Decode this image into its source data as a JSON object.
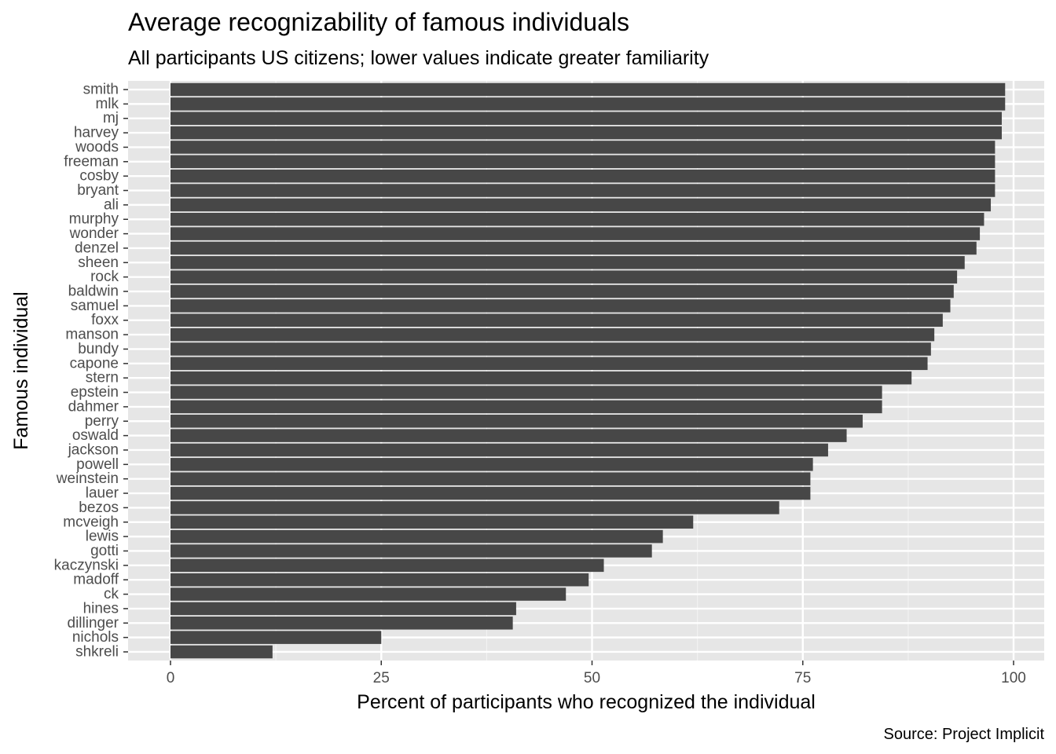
{
  "chart_data": {
    "type": "bar",
    "orientation": "horizontal",
    "title": "Average recognizability of famous individuals",
    "subtitle": "All participants US citizens; lower values indicate greater familiarity",
    "xlabel": "Percent of participants who recognized the individual",
    "ylabel": "Famous individual",
    "caption": "Source: Project Implicit",
    "xlim": [
      0,
      100
    ],
    "x_ticks": [
      "0",
      "25",
      "50",
      "75",
      "100"
    ],
    "grid": true,
    "legend": "none",
    "categories": [
      "smith",
      "mlk",
      "mj",
      "harvey",
      "woods",
      "freeman",
      "cosby",
      "bryant",
      "ali",
      "murphy",
      "wonder",
      "denzel",
      "sheen",
      "rock",
      "baldwin",
      "samuel",
      "foxx",
      "manson",
      "bundy",
      "capone",
      "stern",
      "epstein",
      "dahmer",
      "perry",
      "oswald",
      "jackson",
      "powell",
      "weinstein",
      "lauer",
      "bezos",
      "mcveigh",
      "lewis",
      "gotti",
      "kaczynski",
      "madoff",
      "ck",
      "hines",
      "dillinger",
      "nichols",
      "shkreli"
    ],
    "values": [
      99.0,
      99.0,
      98.6,
      98.6,
      97.8,
      97.8,
      97.8,
      97.8,
      97.3,
      96.5,
      96.0,
      95.6,
      94.2,
      93.3,
      92.9,
      92.5,
      91.6,
      90.6,
      90.2,
      89.8,
      87.9,
      84.4,
      84.4,
      82.1,
      80.2,
      78.0,
      76.2,
      75.9,
      75.9,
      72.2,
      62.0,
      58.4,
      57.1,
      51.4,
      49.6,
      46.9,
      41.0,
      40.6,
      25.0,
      12.1
    ],
    "colors": {
      "bar": "#474747",
      "panel": "#e6e6e6",
      "grid_major": "#ffffff",
      "grid_minor": "#f2f2f2",
      "tick_label": "#4d4d4d",
      "tick_mark": "#333333"
    }
  }
}
